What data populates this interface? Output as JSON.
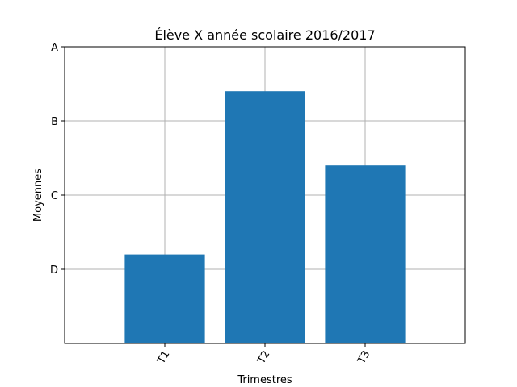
{
  "chart_data": {
    "type": "bar",
    "title": "Élève X année scolaire 2016/2017",
    "xlabel": "Trimestres",
    "ylabel": "Moyennes",
    "categories": [
      "T1",
      "T2",
      "T3"
    ],
    "values": [
      1.2,
      3.4,
      2.4
    ],
    "ylim": [
      0,
      4
    ],
    "xlim": [
      -1,
      3
    ],
    "yticks": [
      {
        "value": 1,
        "label": "D"
      },
      {
        "value": 2,
        "label": "C"
      },
      {
        "value": 3,
        "label": "B"
      },
      {
        "value": 4,
        "label": "A"
      }
    ],
    "grid": true,
    "bar_color": "#1f77b4",
    "xtick_rotation": -60
  }
}
